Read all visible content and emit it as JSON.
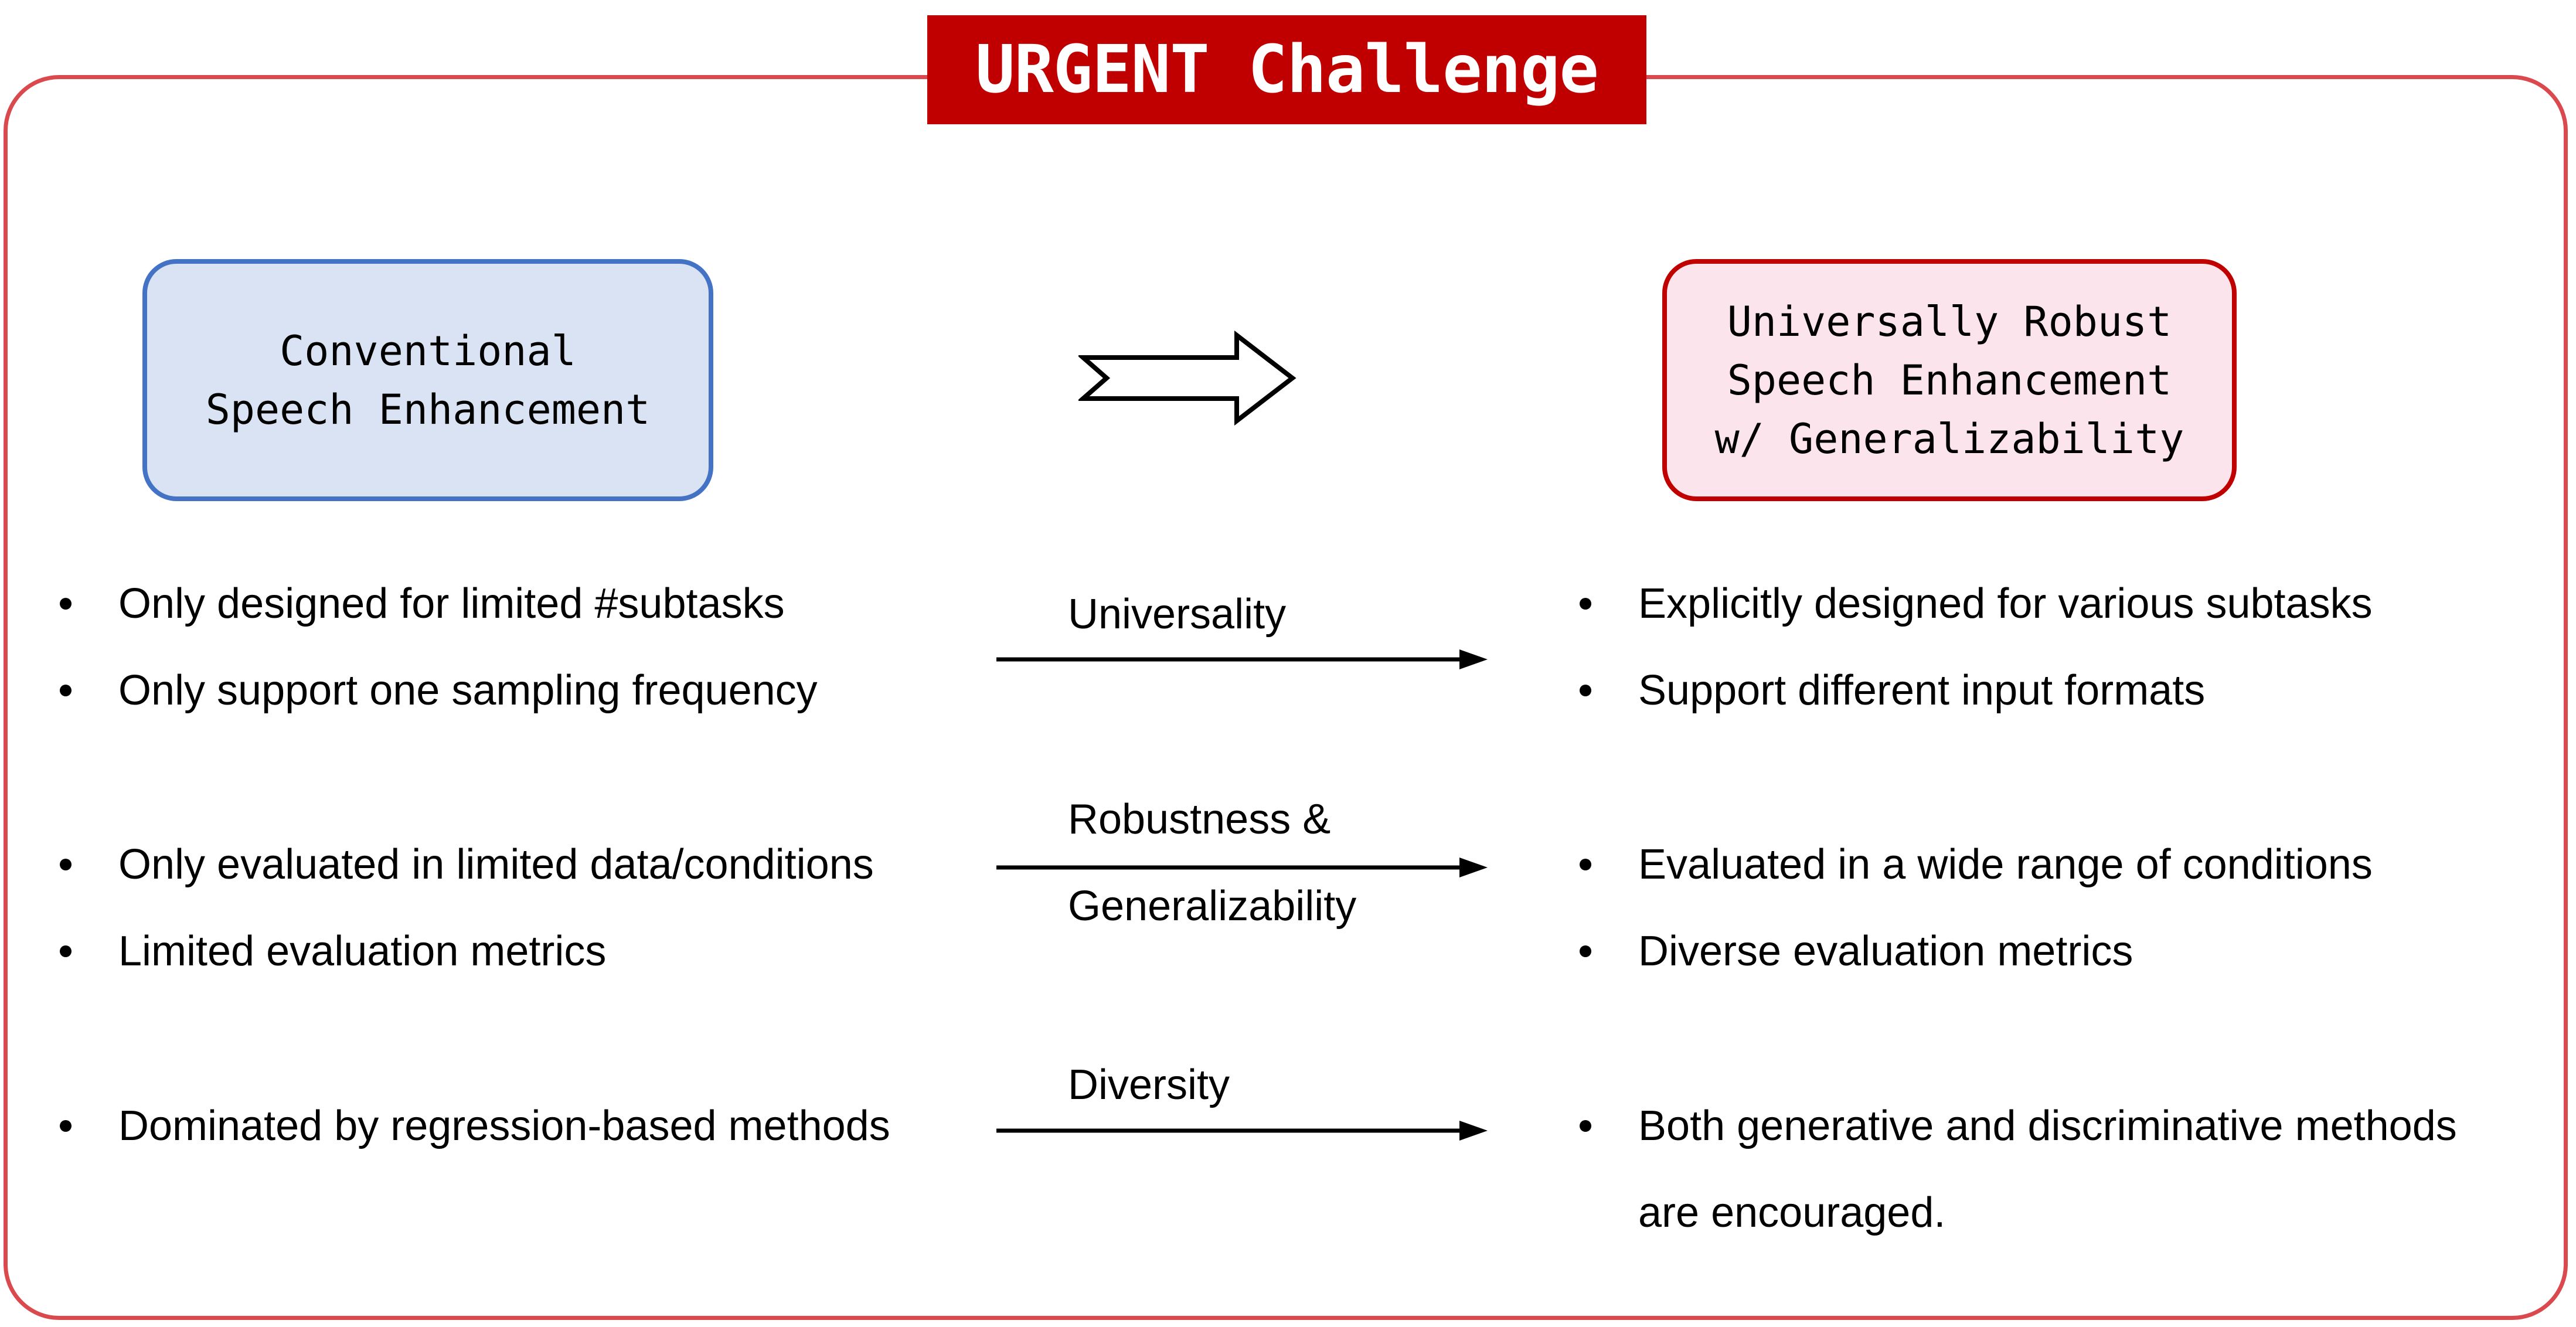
{
  "title": "URGENT Challenge",
  "colors": {
    "frame": "#d9494d",
    "title_bg": "#c00000",
    "conventional_fill": "#dae3f3",
    "conventional_border": "#4472c4",
    "robust_fill": "#fce4ec",
    "robust_border": "#c00000"
  },
  "conventional_box": {
    "line1": "Conventional",
    "line2": "Speech Enhancement"
  },
  "robust_box": {
    "line1": "Universally Robust",
    "line2": "Speech Enhancement",
    "line3": "w/ Generalizability"
  },
  "left_bullets": [
    "Only designed for limited #subtasks",
    "Only support one sampling frequency",
    "Only evaluated in limited data/conditions",
    "Limited evaluation metrics",
    "Dominated by regression-based methods"
  ],
  "right_bullets": [
    "Explicitly designed for various subtasks",
    "Support different input formats",
    "Evaluated in a wide range of conditions",
    "Diverse evaluation metrics",
    "Both generative and discriminative methods",
    "are encouraged."
  ],
  "arrow_labels": {
    "universality": "Universality",
    "robustness_line1": "Robustness &",
    "robustness_line2": "Generalizability",
    "diversity": "Diversity"
  }
}
